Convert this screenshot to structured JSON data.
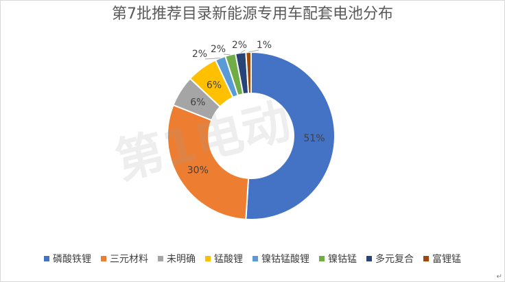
{
  "chart_data": {
    "type": "pie",
    "variant": "doughnut",
    "title": "第7批推荐目录新能源专用车配套电池分布",
    "categories": [
      "磷酸铁锂",
      "三元材料",
      "未明确",
      "锰酸锂",
      "镍钴锰酸锂",
      "镍钴锰",
      "多元复合",
      "富锂锰"
    ],
    "values": [
      51,
      30,
      6,
      6,
      2,
      2,
      2,
      1
    ],
    "labels": [
      "51%",
      "30%",
      "6%",
      "6%",
      "2%",
      "2%",
      "2%",
      "1%"
    ],
    "colors": [
      "#4472C4",
      "#ED7D31",
      "#A5A5A5",
      "#FFC000",
      "#5B9BD5",
      "#70AD47",
      "#264478",
      "#9E480E"
    ],
    "legend_position": "bottom"
  },
  "watermark": {
    "text": "第1电动"
  },
  "corner_mark": "↵"
}
